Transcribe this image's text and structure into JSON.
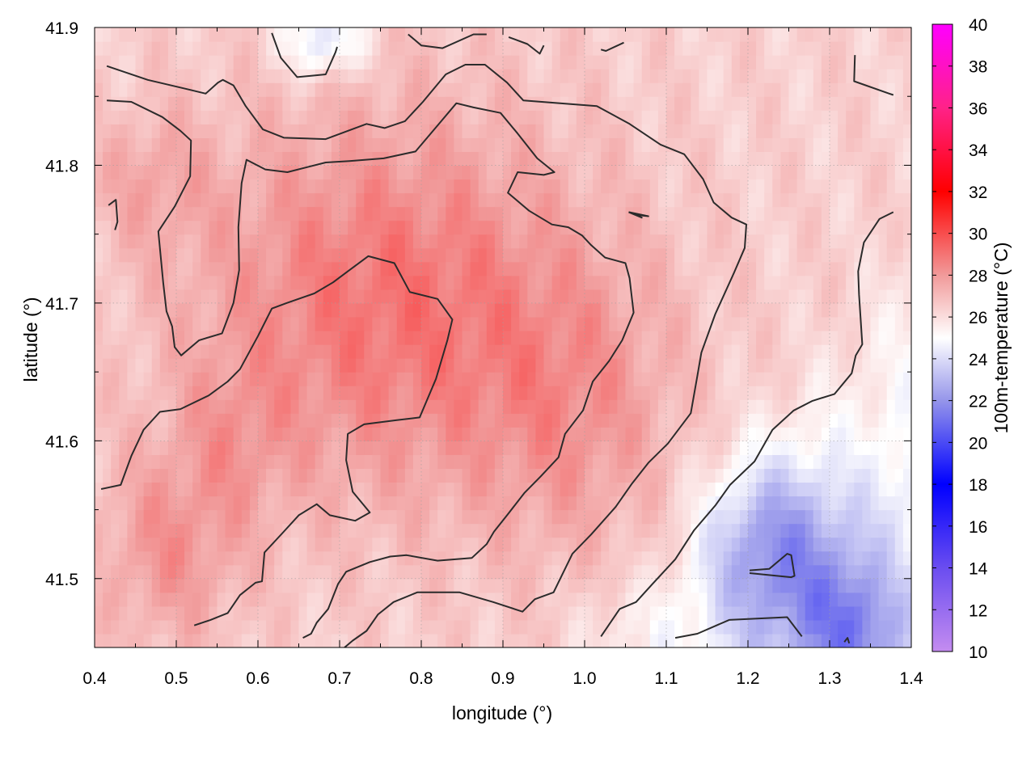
{
  "chart_data": {
    "type": "heatmap",
    "title": "",
    "xlabel": "longitude (°)",
    "ylabel": "latitude (°)",
    "colorbar_label": "100m-temperature (°C)",
    "xlim": [
      0.4,
      1.4
    ],
    "ylim": [
      41.45,
      41.9
    ],
    "x_ticks": [
      "0.4",
      "0.5",
      "0.6",
      "0.7",
      "0.8",
      "0.9",
      "1.0",
      "1.1",
      "1.2",
      "1.3",
      "1.4"
    ],
    "y_ticks": [
      "41.5",
      "41.6",
      "41.7",
      "41.8",
      "41.9"
    ],
    "colorbar_range": [
      10,
      40
    ],
    "colorbar_ticks": [
      "10",
      "12",
      "14",
      "16",
      "18",
      "20",
      "22",
      "24",
      "26",
      "28",
      "30",
      "32",
      "34",
      "36",
      "38",
      "40"
    ],
    "colorscale": [
      {
        "t": 10,
        "color": "#c48cf0"
      },
      {
        "t": 14,
        "color": "#6a4df0"
      },
      {
        "t": 18,
        "color": "#0000ff"
      },
      {
        "t": 22,
        "color": "#9595ea"
      },
      {
        "t": 25,
        "color": "#ffffff"
      },
      {
        "t": 28,
        "color": "#f19a9a"
      },
      {
        "t": 32,
        "color": "#ff0000"
      },
      {
        "t": 36,
        "color": "#ff2288"
      },
      {
        "t": 40,
        "color": "#ff00ff"
      }
    ],
    "grid": true,
    "contour_color": "#2b2b2b",
    "contours": [
      {
        "points": [
          [
            0.415,
            41.872
          ],
          [
            0.465,
            41.862
          ],
          [
            0.515,
            41.855
          ],
          [
            0.536,
            41.852
          ],
          [
            0.551,
            41.86
          ],
          [
            0.557,
            41.862
          ],
          [
            0.57,
            41.858
          ],
          [
            0.585,
            41.843
          ],
          [
            0.606,
            41.826
          ],
          [
            0.632,
            41.82
          ],
          [
            0.683,
            41.819
          ],
          [
            0.733,
            41.83
          ],
          [
            0.755,
            41.827
          ],
          [
            0.78,
            41.832
          ],
          [
            0.802,
            41.846
          ],
          [
            0.83,
            41.866
          ],
          [
            0.854,
            41.873
          ],
          [
            0.878,
            41.873
          ],
          [
            0.905,
            41.86
          ],
          [
            0.925,
            41.847
          ],
          [
            1.015,
            41.843
          ],
          [
            1.055,
            41.83
          ],
          [
            1.093,
            41.815
          ],
          [
            1.122,
            41.808
          ],
          [
            1.145,
            41.79
          ],
          [
            1.158,
            41.773
          ],
          [
            1.18,
            41.762
          ],
          [
            1.198,
            41.757
          ],
          [
            1.196,
            41.74
          ],
          [
            1.183,
            41.722
          ],
          [
            1.16,
            41.692
          ],
          [
            1.143,
            41.664
          ],
          [
            1.138,
            41.647
          ],
          [
            1.13,
            41.62
          ],
          [
            1.102,
            41.598
          ],
          [
            1.078,
            41.584
          ],
          [
            1.058,
            41.569
          ],
          [
            1.038,
            41.552
          ],
          [
            1.008,
            41.532
          ],
          [
            0.985,
            41.518
          ],
          [
            0.962,
            41.49
          ],
          [
            0.939,
            41.485
          ],
          [
            0.924,
            41.476
          ],
          [
            0.888,
            41.483
          ],
          [
            0.847,
            41.49
          ],
          [
            0.795,
            41.49
          ],
          [
            0.766,
            41.483
          ],
          [
            0.747,
            41.474
          ],
          [
            0.733,
            41.462
          ],
          [
            0.716,
            41.455
          ],
          [
            0.706,
            41.45
          ]
        ]
      },
      {
        "points": [
          [
            0.415,
            41.847
          ],
          [
            0.445,
            41.846
          ],
          [
            0.483,
            41.835
          ],
          [
            0.505,
            41.825
          ],
          [
            0.518,
            41.818
          ],
          [
            0.517,
            41.792
          ],
          [
            0.498,
            41.77
          ],
          [
            0.478,
            41.752
          ],
          [
            0.484,
            41.715
          ],
          [
            0.488,
            41.694
          ],
          [
            0.495,
            41.683
          ],
          [
            0.498,
            41.668
          ],
          [
            0.506,
            41.662
          ],
          [
            0.528,
            41.673
          ],
          [
            0.556,
            41.678
          ],
          [
            0.57,
            41.7
          ],
          [
            0.577,
            41.724
          ],
          [
            0.576,
            41.755
          ],
          [
            0.58,
            41.787
          ],
          [
            0.586,
            41.804
          ],
          [
            0.609,
            41.797
          ],
          [
            0.636,
            41.795
          ],
          [
            0.683,
            41.802
          ],
          [
            0.712,
            41.803
          ],
          [
            0.754,
            41.805
          ],
          [
            0.793,
            41.81
          ],
          [
            0.823,
            41.831
          ],
          [
            0.843,
            41.845
          ],
          [
            0.864,
            41.842
          ],
          [
            0.897,
            41.838
          ],
          [
            0.918,
            41.823
          ],
          [
            0.942,
            41.805
          ],
          [
            0.963,
            41.795
          ],
          [
            0.95,
            41.793
          ],
          [
            0.918,
            41.795
          ],
          [
            0.906,
            41.78
          ],
          [
            0.932,
            41.767
          ],
          [
            0.96,
            41.757
          ],
          [
            0.98,
            41.755
          ],
          [
            0.997,
            41.749
          ],
          [
            1.008,
            41.742
          ],
          [
            1.025,
            41.733
          ],
          [
            1.05,
            41.729
          ],
          [
            1.055,
            41.718
          ],
          [
            1.06,
            41.693
          ],
          [
            1.046,
            41.673
          ],
          [
            1.03,
            41.658
          ],
          [
            1.01,
            41.643
          ],
          [
            0.998,
            41.622
          ],
          [
            0.976,
            41.605
          ],
          [
            0.968,
            41.588
          ],
          [
            0.946,
            41.574
          ],
          [
            0.926,
            41.562
          ],
          [
            0.905,
            41.546
          ],
          [
            0.889,
            41.534
          ],
          [
            0.88,
            41.525
          ],
          [
            0.862,
            41.515
          ],
          [
            0.82,
            41.513
          ],
          [
            0.782,
            41.517
          ],
          [
            0.762,
            41.516
          ],
          [
            0.737,
            41.512
          ],
          [
            0.708,
            41.505
          ],
          [
            0.698,
            41.496
          ],
          [
            0.686,
            41.478
          ],
          [
            0.672,
            41.468
          ],
          [
            0.665,
            41.46
          ],
          [
            0.655,
            41.457
          ]
        ]
      },
      {
        "points": [
          [
            0.408,
            41.565
          ],
          [
            0.432,
            41.568
          ],
          [
            0.445,
            41.589
          ],
          [
            0.46,
            41.608
          ],
          [
            0.48,
            41.621
          ],
          [
            0.505,
            41.623
          ],
          [
            0.54,
            41.633
          ],
          [
            0.563,
            41.643
          ],
          [
            0.578,
            41.652
          ],
          [
            0.6,
            41.676
          ],
          [
            0.617,
            41.696
          ],
          [
            0.635,
            41.7
          ],
          [
            0.669,
            41.707
          ],
          [
            0.692,
            41.715
          ],
          [
            0.71,
            41.723
          ],
          [
            0.735,
            41.734
          ],
          [
            0.767,
            41.729
          ],
          [
            0.786,
            41.708
          ],
          [
            0.82,
            41.703
          ],
          [
            0.838,
            41.688
          ],
          [
            0.832,
            41.673
          ],
          [
            0.818,
            41.645
          ],
          [
            0.798,
            41.617
          ],
          [
            0.77,
            41.615
          ],
          [
            0.73,
            41.612
          ],
          [
            0.71,
            41.605
          ],
          [
            0.708,
            41.586
          ],
          [
            0.716,
            41.563
          ],
          [
            0.737,
            41.548
          ],
          [
            0.719,
            41.542
          ],
          [
            0.688,
            41.546
          ],
          [
            0.672,
            41.554
          ],
          [
            0.65,
            41.546
          ],
          [
            0.63,
            41.533
          ],
          [
            0.608,
            41.519
          ],
          [
            0.605,
            41.498
          ],
          [
            0.597,
            41.497
          ],
          [
            0.578,
            41.488
          ],
          [
            0.563,
            41.475
          ],
          [
            0.542,
            41.47
          ],
          [
            0.522,
            41.466
          ]
        ]
      },
      {
        "points": [
          [
            0.617,
            41.896
          ],
          [
            0.628,
            41.878
          ],
          [
            0.648,
            41.864
          ],
          [
            0.683,
            41.866
          ],
          [
            0.695,
            41.882
          ],
          [
            0.697,
            41.886
          ]
        ]
      },
      {
        "points": [
          [
            0.784,
            41.895
          ],
          [
            0.8,
            41.887
          ],
          [
            0.826,
            41.885
          ],
          [
            0.864,
            41.895
          ],
          [
            0.88,
            41.895
          ]
        ]
      },
      {
        "points": [
          [
            0.907,
            41.893
          ],
          [
            0.93,
            41.888
          ],
          [
            0.945,
            41.881
          ],
          [
            0.95,
            41.887
          ]
        ]
      },
      {
        "points": [
          [
            1.02,
            41.884
          ],
          [
            1.026,
            41.883
          ],
          [
            1.048,
            41.889
          ]
        ]
      },
      {
        "points": [
          [
            1.331,
            41.88
          ],
          [
            1.33,
            41.861
          ],
          [
            1.373,
            41.852
          ],
          [
            1.378,
            41.851
          ]
        ]
      },
      {
        "points": [
          [
            0.425,
            41.753
          ],
          [
            0.428,
            41.759
          ],
          [
            0.426,
            41.775
          ],
          [
            0.417,
            41.771
          ]
        ]
      },
      {
        "points": [
          [
            1.054,
            41.766
          ],
          [
            1.078,
            41.763
          ],
          [
            1.062,
            41.764
          ],
          [
            1.07,
            41.762
          ],
          [
            1.054,
            41.766
          ]
        ]
      },
      {
        "points": [
          [
            1.02,
            41.458
          ],
          [
            1.043,
            41.478
          ],
          [
            1.063,
            41.483
          ],
          [
            1.083,
            41.496
          ],
          [
            1.111,
            41.514
          ],
          [
            1.134,
            41.535
          ],
          [
            1.16,
            41.553
          ],
          [
            1.178,
            41.568
          ],
          [
            1.208,
            41.585
          ],
          [
            1.23,
            41.608
          ],
          [
            1.256,
            41.622
          ],
          [
            1.279,
            41.629
          ],
          [
            1.306,
            41.634
          ],
          [
            1.327,
            41.649
          ],
          [
            1.332,
            41.662
          ],
          [
            1.34,
            41.67
          ],
          [
            1.336,
            41.706
          ],
          [
            1.335,
            41.723
          ],
          [
            1.342,
            41.744
          ],
          [
            1.361,
            41.761
          ],
          [
            1.378,
            41.766
          ]
        ]
      },
      {
        "points": [
          [
            1.111,
            41.457
          ],
          [
            1.138,
            41.46
          ],
          [
            1.177,
            41.47
          ],
          [
            1.248,
            41.472
          ],
          [
            1.266,
            41.458
          ]
        ]
      },
      {
        "points": [
          [
            1.202,
            41.506
          ],
          [
            1.226,
            41.507
          ],
          [
            1.248,
            41.518
          ],
          [
            1.253,
            41.517
          ],
          [
            1.257,
            41.502
          ],
          [
            1.253,
            41.501
          ],
          [
            1.202,
            41.504
          ]
        ]
      },
      {
        "points": [
          [
            1.318,
            41.454
          ],
          [
            1.322,
            41.457
          ],
          [
            1.324,
            41.453
          ]
        ]
      }
    ]
  }
}
